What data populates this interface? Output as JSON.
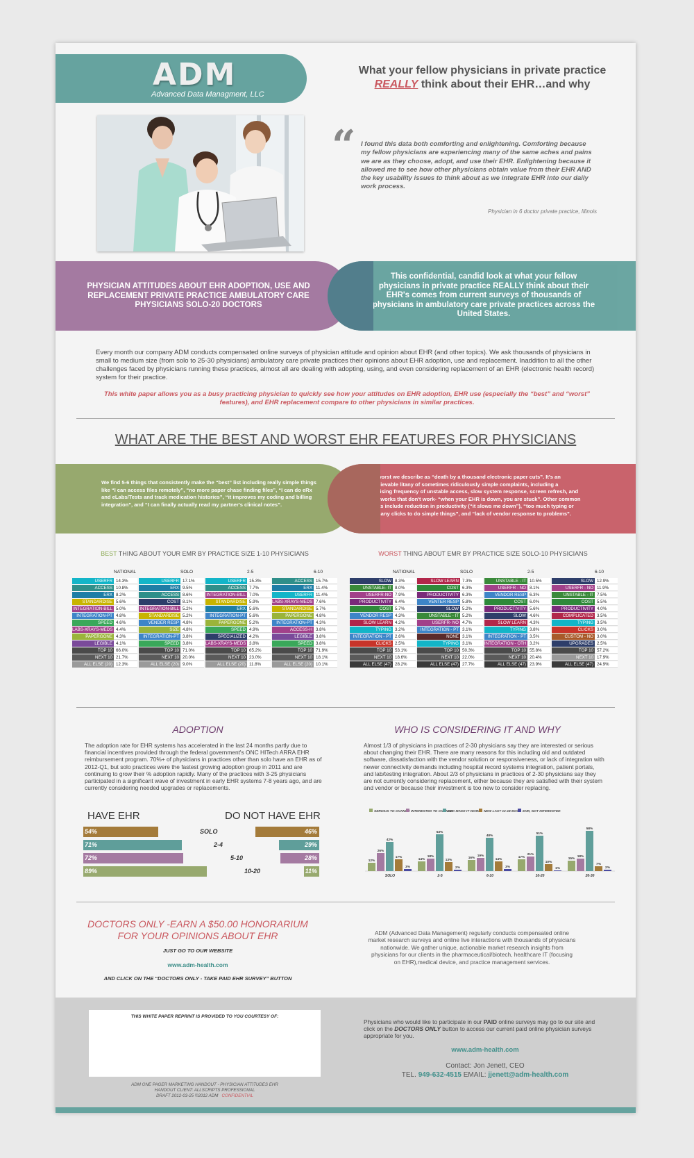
{
  "header": {
    "logo": "ADM",
    "tagline": "Advanced Data Managment, LLC",
    "headline_line1": "What your fellow physicians in private practice",
    "headline_really": "REALLY",
    "headline_line2_rest": " think about their EHR…and why"
  },
  "quote": {
    "mark": "“",
    "text": "I found this data both comforting and enlightening. Comforting because my fellow physicians are experiencing many of the same aches and pains we are as they choose, adopt, and use their EHR. Enlightening because it allowed me to see how other physicians obtain value from their EHR AND the key usability issues to think about as we integrate EHR into our daily work process.",
    "source": "Physician in 6 doctor private practice, Illinois"
  },
  "band1": {
    "left": "PHYSICIAN ATTITUDES ABOUT EHR ADOPTION, USE AND REPLACEMENT PRIVATE PRACTICE AMBULATORY CARE PHYSICIANS SOLO-20 DOCTORS",
    "right": "This confidential, candid look at what your fellow physicians in private practice REALLY think about their EHR's comes from current surveys of thousands of physicians in ambulatory care private practices across the United States."
  },
  "intro": {
    "text": "Every month our company ADM conducts compensated online surveys of physician attitude and opinion about EHR (and other topics). We ask thousands of physicians in small to medium size (from solo to 25-30 physicians) ambulatory care private practices their opinions about EHR adoption, use and replacement. Inaddition to all the other challenges faced by physicians running these practices, almost all are dealing with adopting, using, and even considering replacement of an EHR (electronic health record) system for their practice.",
    "emphasis": "This white paper allows you as a busy practicing physician to quickly see how your attitudes on EHR adoption, EHR use (especially the “best” and “worst” features), and EHR replacement compare to other physicians in similar practices."
  },
  "section_title": "WHAT ARE THE BEST AND WORST EHR FEATURES FOR PHYSICIANS",
  "band2": {
    "left": "We find 5-6 things that consistently make the “best” list including really simple things like “I can access files remotely”, “no more paper chase finding files”, “I can do eRx and eLabs/Tests and track medication histories”, “it improves my coding and billing integration”, and “I can finally actually read my partner's clinical notes”.",
    "right": "The worst we describe as “death by a thousand electronic paper cuts”. It's an unbelievable litany of sometimes ridiculously simple complaints, including a surprising frequency of unstable access, slow system response, screen refresh, and IT networks that don't work- “when your EHR is down, you are stuck”. Other common worsts include reduction in productivity (“it slows me down”), “too much typing or too many clicks to do simple things”, and “lack of vendor response to problems”."
  },
  "best_table": {
    "title_hl": "BEST",
    "title_rest": " THING ABOUT YOUR EMR BY PRACTICE SIZE 1-10 PHYSICIANS",
    "headers": [
      "NATIONAL",
      "SOLO",
      "2-5",
      "6-10"
    ],
    "columns": [
      [
        [
          "USERFR",
          "14.3%",
          "#13b5c8"
        ],
        [
          "ACCESS",
          "10.8%",
          "#2f8f8a"
        ],
        [
          "ERX",
          "8.2%",
          "#1e7ea6"
        ],
        [
          "STANDARDISE",
          "5.6%",
          "#c8b400"
        ],
        [
          "INTEGRATION-BILL",
          "5.0%",
          "#a2418a"
        ],
        [
          "INTEGRATION-PT",
          "4.8%",
          "#3e85c8"
        ],
        [
          "SPEED",
          "4.6%",
          "#3aa85a"
        ],
        [
          "LABS-XRAYS-MEDS",
          "4.4%",
          "#a2418a"
        ],
        [
          "PAPERGONE",
          "4.3%",
          "#9ab43a"
        ],
        [
          "LEGIBLE",
          "4.1%",
          "#7a4a9a"
        ],
        [
          "TOP 10",
          "66.0%",
          "#4a4a4a"
        ],
        [
          "NEXT 10",
          "21.7%",
          "#5a5a5a"
        ],
        [
          "ALL ELSE (20)",
          "12.3%",
          "#9a9a9a"
        ]
      ],
      [
        [
          "USERFR",
          "17.1%",
          "#13b5c8"
        ],
        [
          "ERX",
          "9.5%",
          "#1e7ea6"
        ],
        [
          "ACCESS",
          "8.6%",
          "#2f8f8a"
        ],
        [
          "COST",
          "8.1%",
          "#2e3e6a"
        ],
        [
          "INTEGRATION-BILL",
          "5.2%",
          "#a2418a"
        ],
        [
          "STANDARDISE",
          "5.2%",
          "#c8b400"
        ],
        [
          "VENDER RESP",
          "4.8%",
          "#3e85c8"
        ],
        [
          "SIZE",
          "4.8%",
          "#9ab43a"
        ],
        [
          "INTEGRATION-PT",
          "3.8%",
          "#3e85c8"
        ],
        [
          "SPEED",
          "3.8%",
          "#3aa85a"
        ],
        [
          "TOP 10",
          "71.0%",
          "#4a4a4a"
        ],
        [
          "NEXT 10",
          "20.0%",
          "#5a5a5a"
        ],
        [
          "ALL ELSE (20)",
          "9.0%",
          "#9a9a9a"
        ]
      ],
      [
        [
          "USERFR",
          "15.3%",
          "#13b5c8"
        ],
        [
          "ACCESS",
          "7.7%",
          "#2f8f8a"
        ],
        [
          "INTEGRATION-BILL",
          "7.0%",
          "#a2418a"
        ],
        [
          "STANDARDISE",
          "5.9%",
          "#c8b400"
        ],
        [
          "ERX",
          "5.6%",
          "#1e7ea6"
        ],
        [
          "INTEGRATION-PT",
          "5.6%",
          "#3e85c8"
        ],
        [
          "PAPERGONE",
          "5.2%",
          "#9ab43a"
        ],
        [
          "SPEED",
          "4.9%",
          "#3aa85a"
        ],
        [
          "SPECIALIZED",
          "4.2%",
          "#2e3e6a"
        ],
        [
          "LABS-XRAYS-MEDS",
          "3.8%",
          "#a2418a"
        ],
        [
          "TOP 10",
          "65.2%",
          "#4a4a4a"
        ],
        [
          "NEXT 10",
          "23.0%",
          "#5a5a5a"
        ],
        [
          "ALL ELSE (20)",
          "11.8%",
          "#9a9a9a"
        ]
      ],
      [
        [
          "ACCESS",
          "15.7%",
          "#2f8f8a"
        ],
        [
          "ERX",
          "11.4%",
          "#1e7ea6"
        ],
        [
          "USERFR",
          "11.4%",
          "#13b5c8"
        ],
        [
          "LABS-XRAYS-MEDS",
          "7.6%",
          "#a2418a"
        ],
        [
          "STANDARDISE",
          "5.7%",
          "#c8b400"
        ],
        [
          "PAPERGONE",
          "4.8%",
          "#9ab43a"
        ],
        [
          "INTEGRATION-PT",
          "4.3%",
          "#3e85c8"
        ],
        [
          "ACCESS-H",
          "3.8%",
          "#a2418a"
        ],
        [
          "LEGIBLE",
          "3.8%",
          "#7a4a9a"
        ],
        [
          "SPEED",
          "3.8%",
          "#3aa85a"
        ],
        [
          "TOP 10",
          "71.9%",
          "#4a4a4a"
        ],
        [
          "NEXT 10",
          "18.1%",
          "#5a5a5a"
        ],
        [
          "ALL ELSE (20)",
          "10.1%",
          "#9a9a9a"
        ]
      ]
    ]
  },
  "worst_table": {
    "title_hl": "WORST",
    "title_rest": " THING ABOUT EMR BY PRACTICE SIZE SOLO-10 PHYSICIANS",
    "headers": [
      "NATIONAL",
      "SOLO",
      "2-5",
      "6-10"
    ],
    "columns": [
      [
        [
          "SLOW",
          "8.3%",
          "#2e3e6a"
        ],
        [
          "UNSTABLE- IT",
          "8.0%",
          "#3a8a3a"
        ],
        [
          "USERFR-NO",
          "7.9%",
          "#a2418a"
        ],
        [
          "PRODUCTIVITY",
          "6.4%",
          "#7a2a7a"
        ],
        [
          "COST",
          "5.7%",
          "#2e8a3a"
        ],
        [
          "VENDOR RESP",
          "4.3%",
          "#3e85c8"
        ],
        [
          "SLOW LEARN",
          "4.2%",
          "#b2264a"
        ],
        [
          "TYPING",
          "3.2%",
          "#13b5c8"
        ],
        [
          "INTEGRATION - PT",
          "2.6%",
          "#3e85c8"
        ],
        [
          "CLICKS",
          "2.5%",
          "#c8342a"
        ],
        [
          "TOP 10",
          "53.1%",
          "#4a4a4a"
        ],
        [
          "NEXT 10",
          "18.6%",
          "#5a5a5a"
        ],
        [
          "ALL ELSE (47)",
          "28.2%",
          "#3a3a3a"
        ]
      ],
      [
        [
          "SLOW LEARN",
          "7.3%",
          "#b2264a"
        ],
        [
          "COST",
          "6.3%",
          "#2e8a3a"
        ],
        [
          "PRODUCTIVITY",
          "6.3%",
          "#7a2a7a"
        ],
        [
          "VENTER RESP",
          "5.8%",
          "#3e85c8"
        ],
        [
          "SLOW",
          "5.2%",
          "#2e3e6a"
        ],
        [
          "UNSTABLE - IT",
          "5.2%",
          "#3a8a3a"
        ],
        [
          "USERFR- NO",
          "4.7%",
          "#a2418a"
        ],
        [
          "INTEGRATION - PT",
          "3.1%",
          "#3e85c8"
        ],
        [
          "NONE",
          "3.1%",
          "#5a2a2a"
        ],
        [
          "TYPING",
          "3.1%",
          "#13b5c8"
        ],
        [
          "TOP 10",
          "50.3%",
          "#4a4a4a"
        ],
        [
          "NEXT 10",
          "22.0%",
          "#5a5a5a"
        ],
        [
          "ALL ELSE (47)",
          "27.7%",
          "#3a3a3a"
        ]
      ],
      [
        [
          "UNSTABLE - IT",
          "10.5%",
          "#3a8a3a"
        ],
        [
          "USERFR - NO",
          "8.1%",
          "#a2418a"
        ],
        [
          "VENDOR RESP",
          "6.3%",
          "#3e85c8"
        ],
        [
          "COST",
          "6.0%",
          "#2e8a3a"
        ],
        [
          "PRODUCTIVITY",
          "5.6%",
          "#7a2a7a"
        ],
        [
          "SLOW",
          "4.6%",
          "#2e3e6a"
        ],
        [
          "SLOW LEARN",
          "4.3%",
          "#b2264a"
        ],
        [
          "TYPING",
          "3.8%",
          "#13b5c8"
        ],
        [
          "INTEGRATION - PT",
          "3.5%",
          "#3e85c8"
        ],
        [
          "INTEGRATION - OTH",
          "3.2%",
          "#a2418a"
        ],
        [
          "TOP 10",
          "55.8%",
          "#4a4a4a"
        ],
        [
          "NEXT 10",
          "20.4%",
          "#5a5a5a"
        ],
        [
          "ALL ELSE (47)",
          "23.9%",
          "#3a3a3a"
        ]
      ],
      [
        [
          "SLOW",
          "12.9%",
          "#2e3e6a"
        ],
        [
          "USERFR - NO",
          "11.9%",
          "#a2418a"
        ],
        [
          "UNSTABLE - IT",
          "7.5%",
          "#3a8a3a"
        ],
        [
          "COST",
          "5.5%",
          "#2e8a3a"
        ],
        [
          "PRODUCTIVITY",
          "4.0%",
          "#7a2a7a"
        ],
        [
          "COMPLICATED",
          "3.5%",
          "#b2264a"
        ],
        [
          "TYPING",
          "3.5%",
          "#13b5c8"
        ],
        [
          "CLICKS",
          "3.0%",
          "#c8342a"
        ],
        [
          "CUSTOM - NO",
          "3.0%",
          "#a85a2a"
        ],
        [
          "UPGRADES",
          "2.5%",
          "#2e3e6a"
        ],
        [
          "TOP 10",
          "57.2%",
          "#4a4a4a"
        ],
        [
          "NEXT 10",
          "17.9%",
          "#9a9a9a"
        ],
        [
          "ALL ELSE (47)",
          "24.9%",
          "#3a3a3a"
        ]
      ]
    ]
  },
  "adoption": {
    "title": "ADOPTION",
    "text": "The adoption rate for EHR systems has accelerated in the last 24 months partly due to financial incentives provided through the federal government's ONC HITech ARRA EHR reimbursement program. 70%+ of physicians in practices other than solo have an EHR as of 2012-Q1, but solo practices were the fastest growing adoption group in 2011 and are continuing to grow their % adoption rapidly. Many of the practices with 3-25 physicians participated in a significant wave of investment in early EHR systems 7-8 years ago, and are currently considering needed upgrades or replacements.",
    "have_label": "HAVE EHR",
    "not_label": "DO NOT HAVE EHR"
  },
  "considering": {
    "title": "WHO IS CONSIDERING IT AND WHY",
    "text": "Almost 1/3 of physicians in practices of 2-30 physicians say they are interested or serious about changing their EHR. There are many reasons for this including old and outdated software, dissatisfaction with the vendor solution or responsiveness, or lack of integration with newer connectivity demands including hospital record systems integration, patient portals, and lab/testing integration. About 2/3 of physicians in practices of 2-30 physicians say they are not currently considering replacement, either because they are satisfied with their system and vendor or because their investment is too new to consider replacing."
  },
  "chart_data": [
    {
      "type": "bar",
      "categories": [
        "SOLO",
        "2-4",
        "5-10",
        "10-20"
      ],
      "series": [
        {
          "name": "HAVE EHR",
          "values": [
            54,
            71,
            72,
            89
          ]
        },
        {
          "name": "DO NOT HAVE EHR",
          "values": [
            46,
            29,
            28,
            11
          ]
        }
      ],
      "colors": [
        "#a47b3a",
        "#5f9e9a",
        "#a47aa1",
        "#97a96e"
      ],
      "labels_have": [
        "54%",
        "71%",
        "72%",
        "89%"
      ],
      "labels_not": [
        "46%",
        "29%",
        "28%",
        "11%"
      ]
    },
    {
      "type": "bar",
      "categories": [
        "SOLO",
        "2-5",
        "6-10",
        "10-20",
        "20-30"
      ],
      "series": [
        {
          "name": "SERIOUS TO CHANGE",
          "color": "#97a96e",
          "values": [
            12,
            14,
            16,
            17,
            15
          ]
        },
        {
          "name": "INTERESTED TO CHANGE",
          "color": "#a47aa1",
          "values": [
            26,
            18,
            19,
            21,
            18
          ]
        },
        {
          "name": "OLD MAKE IT WORK",
          "color": "#5f9e9a",
          "values": [
            42,
            53,
            48,
            51,
            58
          ]
        },
        {
          "name": "NEW LAST 12-18 MOS",
          "color": "#a47b3a",
          "values": [
            17,
            13,
            14,
            10,
            7
          ]
        },
        {
          "name": "EHR, NOT INTERESTED",
          "color": "#4a4aa0",
          "values": [
            3,
            2,
            3,
            1,
            2
          ]
        }
      ],
      "ylim": [
        0,
        60
      ]
    }
  ],
  "promo": {
    "title": "DOCTORS ONLY -EARN A $50.00 HONORARIUM FOR YOUR OPINIONS ABOUT EHR",
    "line1": "JUST GO TO OUR WEBSITE",
    "url": "www.adm-health.com",
    "line2": "AND CLICK ON THE “DOCTORS ONLY - TAKE PAID EHR SURVEY” BUTTON"
  },
  "about": "ADM (Advanced Data Management) regularly conducts compensated online market research surveys and online live interactions with thousands of physicians nationwide. We gather unique, actionable market research insights from physicians for our clients in the pharmaceutical/biotech, healthcare IT (focusing on EHR),medical device, and practice management services.",
  "footer": {
    "box_title": "THIS WHITE PAPER REPRINT IS PROVIDED TO YOU COURTESY OF:",
    "draft_line1": "ADM ONE PAGER MARKETING HANDOUT - PHYSICIAN ATTITUDES EHR",
    "draft_line2": "HANDOUT CLIENT: ALLSCRIPTS PROFESSIONAL",
    "draft_line3": "DRAFT 2012-03-25   ©2012 ADM",
    "confidential": "CONFIDENTIAL",
    "participate_a": "Physicians who would like to participate in our ",
    "participate_paid": "PAID",
    "participate_b": " online surveys may go to our site and click on the ",
    "participate_doc": "DOCTORS ONLY",
    "participate_c": " button to access our current paid online physician surveys appropriate for you.",
    "url": "www.adm-health.com",
    "contact": "Contact: Jon Jenett, CEO",
    "tel_label": "TEL.",
    "tel": "949-632-4515",
    "email_label": "EMAIL:",
    "email": "jjenett@adm-health.com"
  }
}
